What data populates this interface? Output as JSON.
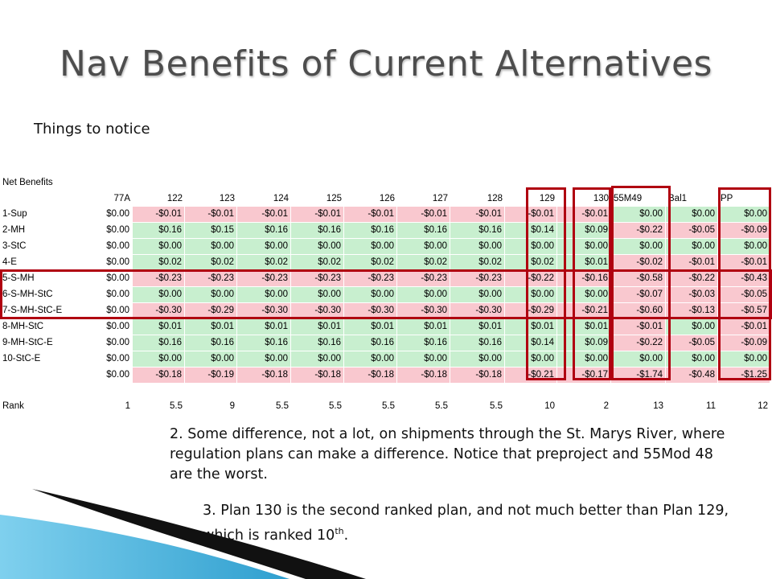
{
  "title": "Nav Benefits of Current Alternatives",
  "subtitle": "Things to notice",
  "table": {
    "label": "Net Benefits",
    "columns": [
      "77A",
      "122",
      "123",
      "124",
      "125",
      "126",
      "127",
      "128",
      "129",
      "130",
      "55M49",
      "Bal1",
      "PP"
    ],
    "rows": [
      {
        "name": "1-Sup",
        "values": [
          "$0.00",
          "-$0.01",
          "-$0.01",
          "-$0.01",
          "-$0.01",
          "-$0.01",
          "-$0.01",
          "-$0.01",
          "-$0.01",
          "-$0.01",
          "$0.00",
          "$0.00",
          "$0.00"
        ]
      },
      {
        "name": "2-MH",
        "values": [
          "$0.00",
          "$0.16",
          "$0.15",
          "$0.16",
          "$0.16",
          "$0.16",
          "$0.16",
          "$0.16",
          "$0.14",
          "$0.09",
          "-$0.22",
          "-$0.05",
          "-$0.09"
        ]
      },
      {
        "name": "3-StC",
        "values": [
          "$0.00",
          "$0.00",
          "$0.00",
          "$0.00",
          "$0.00",
          "$0.00",
          "$0.00",
          "$0.00",
          "$0.00",
          "$0.00",
          "$0.00",
          "$0.00",
          "$0.00"
        ]
      },
      {
        "name": "4-E",
        "values": [
          "$0.00",
          "$0.02",
          "$0.02",
          "$0.02",
          "$0.02",
          "$0.02",
          "$0.02",
          "$0.02",
          "$0.02",
          "$0.01",
          "-$0.02",
          "-$0.01",
          "-$0.01"
        ]
      },
      {
        "name": "5-S-MH",
        "values": [
          "$0.00",
          "-$0.23",
          "-$0.23",
          "-$0.23",
          "-$0.23",
          "-$0.23",
          "-$0.23",
          "-$0.23",
          "-$0.22",
          "-$0.16",
          "-$0.58",
          "-$0.22",
          "-$0.43"
        ]
      },
      {
        "name": "6-S-MH-StC",
        "values": [
          "$0.00",
          "$0.00",
          "$0.00",
          "$0.00",
          "$0.00",
          "$0.00",
          "$0.00",
          "$0.00",
          "$0.00",
          "$0.00",
          "-$0.07",
          "-$0.03",
          "-$0.05"
        ]
      },
      {
        "name": "7-S-MH-StC-E",
        "values": [
          "$0.00",
          "-$0.30",
          "-$0.29",
          "-$0.30",
          "-$0.30",
          "-$0.30",
          "-$0.30",
          "-$0.30",
          "-$0.29",
          "-$0.21",
          "-$0.60",
          "-$0.13",
          "-$0.57"
        ]
      },
      {
        "name": "8-MH-StC",
        "values": [
          "$0.00",
          "$0.01",
          "$0.01",
          "$0.01",
          "$0.01",
          "$0.01",
          "$0.01",
          "$0.01",
          "$0.01",
          "$0.01",
          "-$0.01",
          "$0.00",
          "-$0.01"
        ]
      },
      {
        "name": "9-MH-StC-E",
        "values": [
          "$0.00",
          "$0.16",
          "$0.16",
          "$0.16",
          "$0.16",
          "$0.16",
          "$0.16",
          "$0.16",
          "$0.14",
          "$0.09",
          "-$0.22",
          "-$0.05",
          "-$0.09"
        ]
      },
      {
        "name": "10-StC-E",
        "values": [
          "$0.00",
          "$0.00",
          "$0.00",
          "$0.00",
          "$0.00",
          "$0.00",
          "$0.00",
          "$0.00",
          "$0.00",
          "$0.00",
          "$0.00",
          "$0.00",
          "$0.00"
        ]
      },
      {
        "name": "",
        "values": [
          "$0.00",
          "-$0.18",
          "-$0.19",
          "-$0.18",
          "-$0.18",
          "-$0.18",
          "-$0.18",
          "-$0.18",
          "-$0.21",
          "-$0.17",
          "-$1.74",
          "-$0.48",
          "-$1.25"
        ]
      }
    ],
    "rank_label": "Rank",
    "ranks": [
      "1",
      "5.5",
      "9",
      "5.5",
      "5.5",
      "5.5",
      "5.5",
      "5.5",
      "10",
      "2",
      "13",
      "11",
      "12"
    ]
  },
  "notes": {
    "note2": "2.  Some difference, not a lot, on shipments through the St. Marys River, where regulation plans can make a difference. Notice that preproject and 55Mod 48 are the worst.",
    "note3_main": "3. Plan 130 is the second ranked plan, and not much better than Plan 129, which is ranked 10",
    "note3_sup": "th",
    "note3_end": "."
  },
  "colors": {
    "negative_fill": "#f9c8cf",
    "positive_fill": "#c8efcf",
    "highlight_border": "#b00010",
    "swoosh_blue": "#4bb0d6"
  }
}
